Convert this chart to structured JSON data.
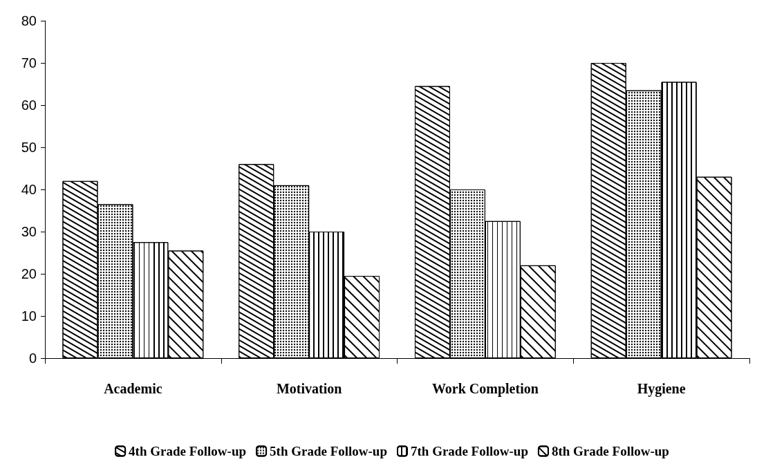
{
  "chart_data": {
    "type": "bar",
    "categories": [
      "Academic",
      "Motivation",
      "Work Completion",
      "Hygiene"
    ],
    "series": [
      {
        "name": "4th Grade Follow-up",
        "color": "#ffffff",
        "values": [
          42,
          46,
          64.5,
          70
        ]
      },
      {
        "name": "5th Grade Follow-up",
        "color": "#ffffff",
        "values": [
          36.5,
          41,
          40,
          63.5
        ]
      },
      {
        "name": "7th Grade Follow-up",
        "color": "#ffffff",
        "values": [
          27.5,
          30,
          32.5,
          65.5
        ]
      },
      {
        "name": "8th Grade Follow-up",
        "color": "#ffffff",
        "values": [
          25.5,
          19.5,
          22,
          43
        ]
      }
    ],
    "ylim": [
      0,
      80
    ],
    "yticks": [
      0,
      10,
      20,
      30,
      40,
      50,
      60,
      70,
      80
    ],
    "grid": false,
    "legend": "bottom"
  }
}
